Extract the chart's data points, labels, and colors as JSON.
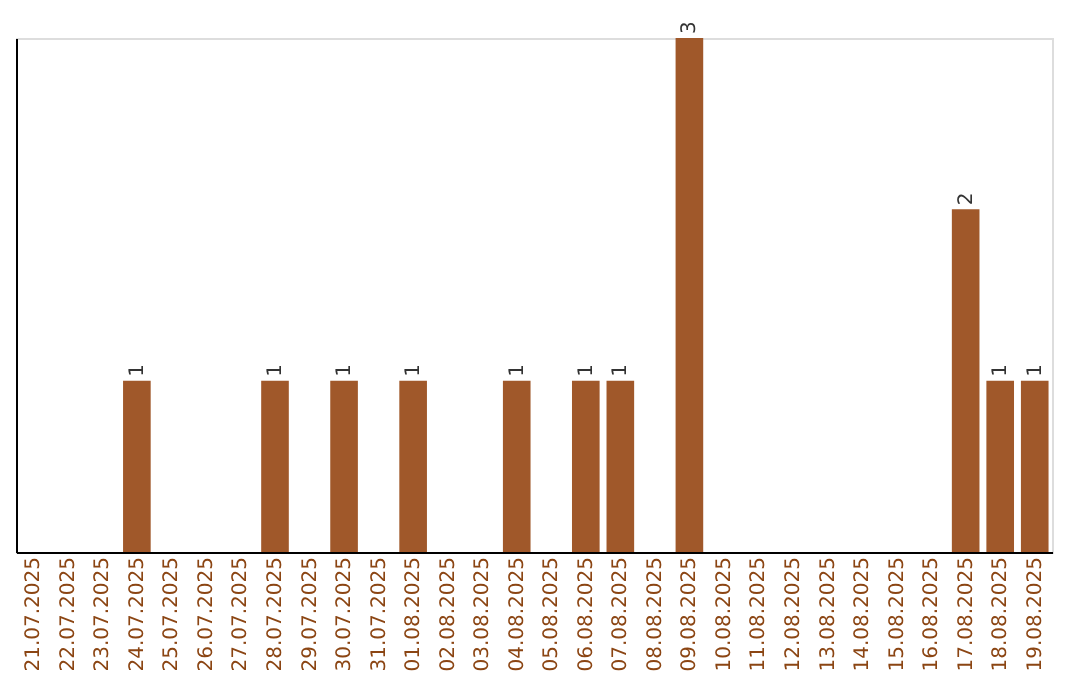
{
  "chart_data": {
    "type": "bar",
    "categories": [
      "21.07.2025",
      "22.07.2025",
      "23.07.2025",
      "24.07.2025",
      "25.07.2025",
      "26.07.2025",
      "27.07.2025",
      "28.07.2025",
      "29.07.2025",
      "30.07.2025",
      "31.07.2025",
      "01.08.2025",
      "02.08.2025",
      "03.08.2025",
      "04.08.2025",
      "05.08.2025",
      "06.08.2025",
      "07.08.2025",
      "08.08.2025",
      "09.08.2025",
      "10.08.2025",
      "11.08.2025",
      "12.08.2025",
      "13.08.2025",
      "14.08.2025",
      "15.08.2025",
      "16.08.2025",
      "17.08.2025",
      "18.08.2025",
      "19.08.2025"
    ],
    "values": [
      0,
      0,
      0,
      1,
      0,
      0,
      0,
      1,
      0,
      1,
      0,
      1,
      0,
      0,
      1,
      0,
      1,
      1,
      0,
      3,
      0,
      0,
      0,
      0,
      0,
      0,
      0,
      2,
      1,
      1
    ],
    "value_labels": [
      null,
      null,
      null,
      "1",
      null,
      null,
      null,
      "1",
      null,
      "1",
      null,
      "1",
      null,
      null,
      "1",
      null,
      "1",
      "1",
      null,
      "3",
      null,
      null,
      null,
      null,
      null,
      null,
      null,
      "2",
      "1",
      "1"
    ],
    "color": "#a0582a",
    "tick_labels": "x",
    "grid": false
  }
}
